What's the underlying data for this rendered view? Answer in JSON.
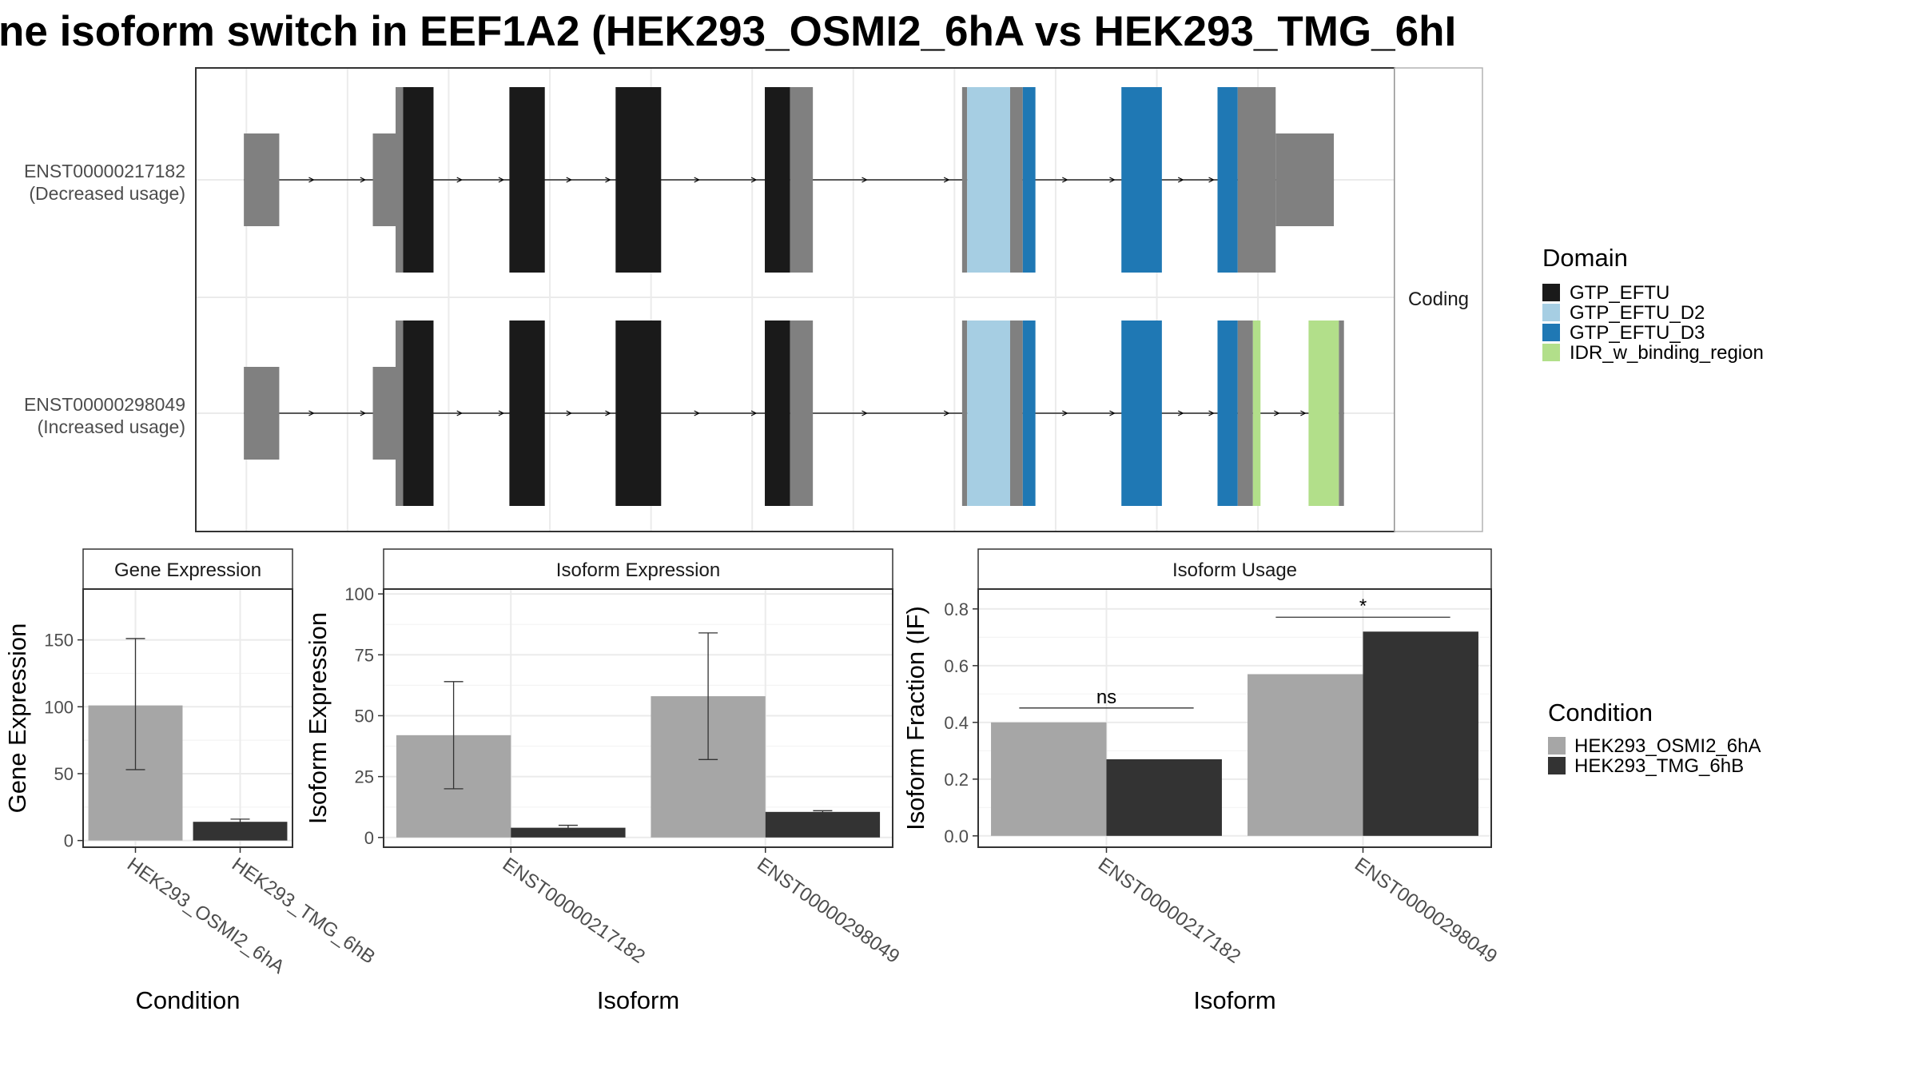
{
  "figure_title": "ne isoform switch in EEF1A2 (HEK293_OSMI2_6hA vs HEK293_TMG_6hI",
  "colors": {
    "GTP_EFTU": "#1a1a1a",
    "GTP_EFTU_D2": "#a6cee3",
    "GTP_EFTU_D3": "#1f78b4",
    "IDR_w_binding_region": "#b2df8a",
    "noncoding_exon": "#808080",
    "HEK293_OSMI2_6hA": "#a6a6a6",
    "HEK293_TMG_6hB": "#333333",
    "panel_border": "#333333",
    "grid": "#ebebeb",
    "strip_fill": "#ffffff"
  },
  "chart_data": [
    {
      "type": "gene_structure",
      "panel": "transcripts",
      "strip_label": "Coding",
      "legend": {
        "title": "Domain",
        "entries": [
          "GTP_EFTU",
          "GTP_EFTU_D2",
          "GTP_EFTU_D3",
          "IDR_w_binding_region"
        ]
      },
      "transcripts": [
        {
          "id": "ENST00000217182",
          "label_line1": "ENST00000217182",
          "label_line2": "(Decreased usage)",
          "segments": [
            {
              "start": 0.95,
              "end": 1.65,
              "kind": "utr"
            },
            {
              "start": 3.5,
              "end": 3.95,
              "kind": "utr"
            },
            {
              "start": 3.95,
              "end": 4.1,
              "kind": "coding"
            },
            {
              "start": 4.1,
              "end": 4.7,
              "kind": "GTP_EFTU"
            },
            {
              "start": 6.2,
              "end": 6.9,
              "kind": "GTP_EFTU"
            },
            {
              "start": 8.3,
              "end": 9.2,
              "kind": "GTP_EFTU"
            },
            {
              "start": 11.25,
              "end": 11.75,
              "kind": "GTP_EFTU"
            },
            {
              "start": 11.75,
              "end": 12.2,
              "kind": "coding"
            },
            {
              "start": 15.15,
              "end": 15.25,
              "kind": "coding"
            },
            {
              "start": 15.25,
              "end": 16.1,
              "kind": "GTP_EFTU_D2"
            },
            {
              "start": 16.1,
              "end": 16.35,
              "kind": "coding"
            },
            {
              "start": 16.35,
              "end": 16.6,
              "kind": "GTP_EFTU_D3"
            },
            {
              "start": 18.3,
              "end": 19.1,
              "kind": "GTP_EFTU_D3"
            },
            {
              "start": 20.2,
              "end": 20.6,
              "kind": "GTP_EFTU_D3"
            },
            {
              "start": 20.6,
              "end": 21.35,
              "kind": "coding"
            },
            {
              "start": 21.35,
              "end": 22.5,
              "kind": "utr"
            }
          ]
        },
        {
          "id": "ENST00000298049",
          "label_line1": "ENST00000298049",
          "label_line2": "(Increased usage)",
          "segments": [
            {
              "start": 0.95,
              "end": 1.65,
              "kind": "utr"
            },
            {
              "start": 3.5,
              "end": 3.95,
              "kind": "utr"
            },
            {
              "start": 3.95,
              "end": 4.1,
              "kind": "coding"
            },
            {
              "start": 4.1,
              "end": 4.7,
              "kind": "GTP_EFTU"
            },
            {
              "start": 6.2,
              "end": 6.9,
              "kind": "GTP_EFTU"
            },
            {
              "start": 8.3,
              "end": 9.2,
              "kind": "GTP_EFTU"
            },
            {
              "start": 11.25,
              "end": 11.75,
              "kind": "GTP_EFTU"
            },
            {
              "start": 11.75,
              "end": 12.2,
              "kind": "coding"
            },
            {
              "start": 15.15,
              "end": 15.25,
              "kind": "coding"
            },
            {
              "start": 15.25,
              "end": 16.1,
              "kind": "GTP_EFTU_D2"
            },
            {
              "start": 16.1,
              "end": 16.35,
              "kind": "coding"
            },
            {
              "start": 16.35,
              "end": 16.6,
              "kind": "GTP_EFTU_D3"
            },
            {
              "start": 18.3,
              "end": 19.1,
              "kind": "GTP_EFTU_D3"
            },
            {
              "start": 20.2,
              "end": 20.6,
              "kind": "GTP_EFTU_D3"
            },
            {
              "start": 20.6,
              "end": 20.9,
              "kind": "coding"
            },
            {
              "start": 20.9,
              "end": 21.05,
              "kind": "IDR_w_binding_region"
            },
            {
              "start": 22.0,
              "end": 22.6,
              "kind": "IDR_w_binding_region"
            },
            {
              "start": 22.6,
              "end": 22.7,
              "kind": "coding"
            }
          ]
        }
      ]
    },
    {
      "type": "bar",
      "title": "Gene Expression",
      "xlabel": "Condition",
      "ylabel": "Gene Expression",
      "categories": [
        "HEK293_OSMI2_6hA",
        "HEK293_TMG_6hB"
      ],
      "values": [
        101,
        14
      ],
      "error_low": [
        53,
        12
      ],
      "error_high": [
        151,
        16
      ],
      "ylim": [
        -5,
        188
      ],
      "yticks": [
        0,
        50,
        100,
        150
      ]
    },
    {
      "type": "bar",
      "title": "Isoform Expression",
      "xlabel": "Isoform",
      "ylabel": "Isoform Expression",
      "categories": [
        "ENST00000217182",
        "ENST00000298049"
      ],
      "series": [
        {
          "name": "HEK293_OSMI2_6hA",
          "values": [
            42,
            58
          ],
          "error_low": [
            20,
            32
          ],
          "error_high": [
            64,
            84
          ]
        },
        {
          "name": "HEK293_TMG_6hB",
          "values": [
            4,
            10.5
          ],
          "error_low": [
            3,
            10
          ],
          "error_high": [
            5,
            11
          ]
        }
      ],
      "ylim": [
        -4,
        102
      ],
      "yticks": [
        0,
        25,
        50,
        75,
        100
      ]
    },
    {
      "type": "bar",
      "title": "Isoform Usage",
      "xlabel": "Isoform",
      "ylabel": "Isoform Fraction (IF)",
      "categories": [
        "ENST00000217182",
        "ENST00000298049"
      ],
      "series": [
        {
          "name": "HEK293_OSMI2_6hA",
          "values": [
            0.4,
            0.57
          ]
        },
        {
          "name": "HEK293_TMG_6hB",
          "values": [
            0.27,
            0.72
          ]
        }
      ],
      "annotations": [
        "ns",
        "*"
      ],
      "ylim": [
        -0.04,
        0.87
      ],
      "yticks": [
        "0.0",
        "0.2",
        "0.4",
        "0.6",
        "0.8"
      ]
    }
  ],
  "condition_legend": {
    "title": "Condition",
    "entries": [
      "HEK293_OSMI2_6hA",
      "HEK293_TMG_6hB"
    ]
  }
}
